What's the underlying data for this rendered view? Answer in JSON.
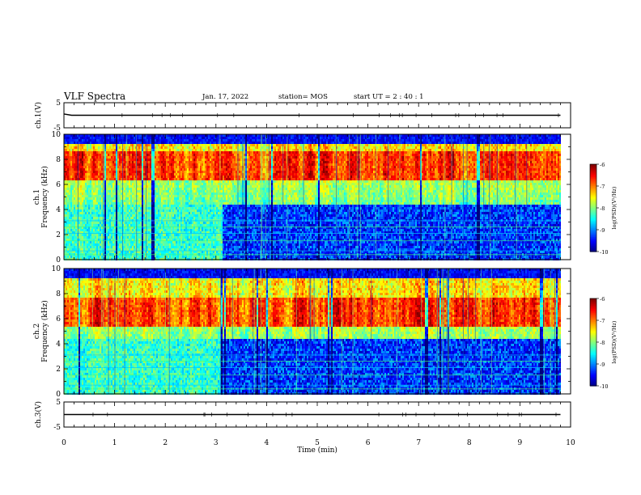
{
  "header": {
    "title": "VLF Spectra",
    "date": "Jan. 17, 2022",
    "station": "station= MOS",
    "start_ut": "start  UT =   2 : 40 : 1"
  },
  "chart_data": [
    {
      "type": "line",
      "panel": "ch1-voltage",
      "ylabel": "ch.1(V)",
      "ylim": [
        -5,
        5
      ],
      "yticks": [
        5,
        -5
      ],
      "xlim": [
        0,
        10
      ],
      "series": [
        {
          "x": [
            0,
            0.15,
            0.3,
            9.8
          ],
          "values": [
            0.5,
            0,
            0,
            0
          ]
        }
      ]
    },
    {
      "type": "heatmap",
      "panel": "ch1-spectrogram",
      "ylabel": [
        "ch.1",
        "Frequency (kHz)"
      ],
      "ylim": [
        0,
        10
      ],
      "yticks": [
        0,
        2,
        4,
        6,
        8,
        10
      ],
      "xlim": [
        0,
        10
      ],
      "data_xmax": 9.8,
      "colorbar": {
        "label": "log(PSD)(V²/Hz)",
        "range": [
          -10,
          -6
        ],
        "ticks": [
          "-6",
          "-7",
          "-8",
          "-9",
          "-10"
        ]
      },
      "intense_band_khz": [
        6.5,
        8.7
      ],
      "quiet_after_min": 3.1
    },
    {
      "type": "heatmap",
      "panel": "ch2-spectrogram",
      "ylabel": [
        "ch.2",
        "Frequency (kHz)"
      ],
      "ylim": [
        0,
        10
      ],
      "yticks": [
        0,
        2,
        4,
        6,
        8,
        10
      ],
      "xlim": [
        0,
        10
      ],
      "data_xmax": 9.8,
      "colorbar": {
        "label": "log(PSD)(V²/Hz)",
        "range": [
          -10,
          -6
        ],
        "ticks": [
          "-6",
          "-7",
          "-8",
          "-9",
          "-10"
        ]
      },
      "intense_band_khz": [
        5.5,
        7.8
      ],
      "quiet_after_min": 3.1
    },
    {
      "type": "line",
      "panel": "ch3-voltage",
      "ylabel": "ch.3(V)",
      "ylim": [
        -5,
        5
      ],
      "yticks": [
        5,
        -5
      ],
      "xlim": [
        0,
        10
      ],
      "xlabel": "Time (min)",
      "xticks": [
        "0",
        "1",
        "2",
        "3",
        "4",
        "5",
        "6",
        "7",
        "8",
        "9",
        "10"
      ],
      "series": [
        {
          "x": [
            0,
            9.8
          ],
          "values": [
            0,
            0
          ]
        }
      ]
    }
  ]
}
